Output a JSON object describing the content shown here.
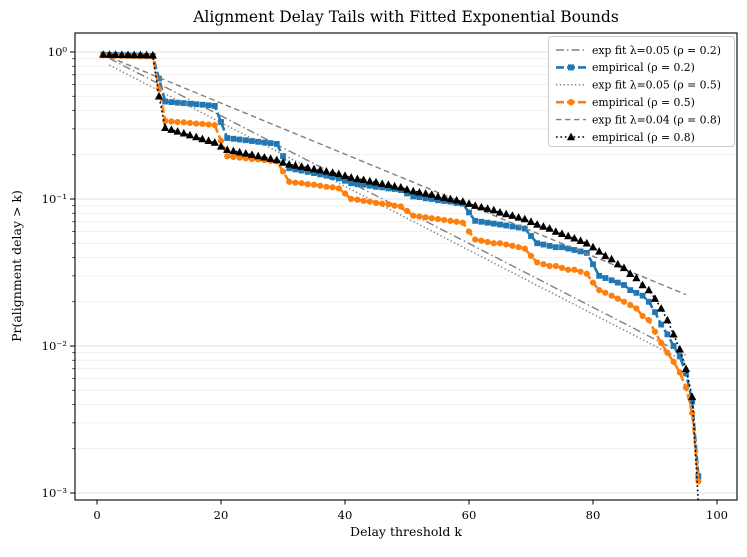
{
  "chart_data": {
    "type": "line",
    "title": "Alignment Delay Tails with Fitted Exponential Bounds",
    "xlabel": "Delay threshold k",
    "ylabel": "Pr(alignment delay > k)",
    "x_scale": "linear",
    "y_scale": "log",
    "xlim": [
      -3.5,
      103
    ],
    "ylim": [
      0.00085,
      1.35
    ],
    "grid": "horizontal major+minor log gridlines, no vertical gridlines",
    "legend_position": "upper right",
    "x_ticks": {
      "values": [
        0,
        20,
        40,
        60,
        80,
        100
      ],
      "labels": [
        "0",
        "20",
        "40",
        "60",
        "80",
        "100"
      ]
    },
    "y_ticks": {
      "values": [
        1,
        0.1,
        0.01,
        0.001
      ],
      "labels": [
        "10⁰",
        "10⁻¹",
        "10⁻²",
        "10⁻³"
      ]
    },
    "colors": {
      "empirical_rho02": "#1f77b4",
      "empirical_rho05": "#ff7f0e",
      "empirical_rho08": "#000000",
      "fit_lines": "#808080",
      "grid_major": "#d9d9d9",
      "grid_minor": "#ebebeb",
      "legend_border": "#cccccc",
      "spine": "#000000"
    },
    "k_start": 1,
    "k_step": 1,
    "series": [
      {
        "label": "exp fit λ=0.05 (ρ = 0.2)",
        "kind": "fit",
        "model": "scale*exp(-lambda*k)",
        "lambda": 0.05,
        "scale": 1.0,
        "k_range": [
          2,
          95
        ],
        "color": "#808080",
        "linestyle": "dashdot",
        "marker": "none"
      },
      {
        "label": "empirical (ρ = 0.2)",
        "kind": "empirical",
        "rho": 0.2,
        "color": "#1f77b4",
        "linestyle": "emp-dash",
        "marker": "square",
        "values": [
          0.96,
          0.957,
          0.955,
          0.952,
          0.95,
          0.947,
          0.945,
          0.942,
          0.94,
          0.66,
          0.46,
          0.456,
          0.452,
          0.449,
          0.445,
          0.441,
          0.438,
          0.434,
          0.43,
          0.334,
          0.26,
          0.257,
          0.254,
          0.251,
          0.248,
          0.245,
          0.242,
          0.24,
          0.237,
          0.196,
          0.162,
          0.159,
          0.156,
          0.153,
          0.15,
          0.147,
          0.144,
          0.141,
          0.138,
          0.133,
          0.128,
          0.126,
          0.125,
          0.123,
          0.121,
          0.12,
          0.118,
          0.117,
          0.115,
          0.109,
          0.104,
          0.103,
          0.101,
          0.1,
          0.098,
          0.097,
          0.096,
          0.094,
          0.093,
          0.081,
          0.071,
          0.07,
          0.069,
          0.068,
          0.067,
          0.066,
          0.065,
          0.064,
          0.063,
          0.056,
          0.05,
          0.049,
          0.048,
          0.047,
          0.047,
          0.046,
          0.045,
          0.044,
          0.043,
          0.036,
          0.03,
          0.029,
          0.028,
          0.027,
          0.026,
          0.024,
          0.023,
          0.022,
          0.02,
          0.017,
          0.014,
          0.012,
          0.01,
          0.0085,
          0.0065,
          0.0042,
          0.0013
        ]
      },
      {
        "label": "exp fit λ=0.05 (ρ = 0.5)",
        "kind": "fit",
        "model": "scale*exp(-lambda*k)",
        "lambda": 0.05,
        "scale": 0.9,
        "k_range": [
          2,
          95
        ],
        "color": "#808080",
        "linestyle": "dotted",
        "marker": "none"
      },
      {
        "label": "empirical (ρ = 0.5)",
        "kind": "empirical",
        "rho": 0.5,
        "color": "#ff7f0e",
        "linestyle": "emp-dash",
        "marker": "circle",
        "values": [
          0.95,
          0.948,
          0.945,
          0.943,
          0.94,
          0.938,
          0.935,
          0.933,
          0.93,
          0.56,
          0.34,
          0.337,
          0.334,
          0.332,
          0.329,
          0.326,
          0.324,
          0.321,
          0.318,
          0.249,
          0.195,
          0.193,
          0.191,
          0.189,
          0.187,
          0.186,
          0.184,
          0.182,
          0.18,
          0.154,
          0.131,
          0.129,
          0.128,
          0.126,
          0.125,
          0.123,
          0.121,
          0.12,
          0.118,
          0.109,
          0.1,
          0.099,
          0.097,
          0.096,
          0.094,
          0.093,
          0.092,
          0.09,
          0.089,
          0.083,
          0.077,
          0.076,
          0.075,
          0.074,
          0.073,
          0.072,
          0.071,
          0.07,
          0.069,
          0.06,
          0.053,
          0.052,
          0.051,
          0.05,
          0.05,
          0.049,
          0.048,
          0.047,
          0.046,
          0.041,
          0.037,
          0.036,
          0.035,
          0.035,
          0.034,
          0.033,
          0.033,
          0.032,
          0.031,
          0.027,
          0.024,
          0.023,
          0.022,
          0.021,
          0.02,
          0.019,
          0.018,
          0.016,
          0.015,
          0.0125,
          0.0105,
          0.009,
          0.0078,
          0.0066,
          0.0052,
          0.0035,
          0.0012
        ]
      },
      {
        "label": "exp fit λ=0.04 (ρ = 0.8)",
        "kind": "fit",
        "model": "scale*exp(-lambda*k)",
        "lambda": 0.04,
        "scale": 1.0,
        "k_range": [
          2,
          95
        ],
        "color": "#808080",
        "linestyle": "dashed",
        "marker": "none"
      },
      {
        "label": "empirical (ρ = 0.8)",
        "kind": "empirical",
        "rho": 0.8,
        "color": "#000000",
        "linestyle": "emp-dot",
        "marker": "triangle",
        "values": [
          0.96,
          0.959,
          0.958,
          0.956,
          0.955,
          0.954,
          0.953,
          0.951,
          0.95,
          0.5,
          0.305,
          0.296,
          0.288,
          0.28,
          0.272,
          0.264,
          0.256,
          0.249,
          0.242,
          0.228,
          0.216,
          0.212,
          0.208,
          0.204,
          0.2,
          0.196,
          0.192,
          0.188,
          0.184,
          0.177,
          0.172,
          0.169,
          0.166,
          0.163,
          0.16,
          0.157,
          0.154,
          0.151,
          0.148,
          0.144,
          0.14,
          0.137,
          0.135,
          0.132,
          0.13,
          0.127,
          0.125,
          0.122,
          0.12,
          0.116,
          0.113,
          0.111,
          0.109,
          0.107,
          0.104,
          0.102,
          0.1,
          0.098,
          0.096,
          0.093,
          0.09,
          0.088,
          0.086,
          0.084,
          0.081,
          0.079,
          0.077,
          0.075,
          0.073,
          0.07,
          0.067,
          0.065,
          0.063,
          0.06,
          0.058,
          0.056,
          0.054,
          0.052,
          0.05,
          0.047,
          0.044,
          0.041,
          0.039,
          0.036,
          0.034,
          0.031,
          0.029,
          0.026,
          0.024,
          0.021,
          0.018,
          0.015,
          0.012,
          0.0095,
          0.007,
          0.0045,
          0.00085
        ]
      }
    ]
  }
}
